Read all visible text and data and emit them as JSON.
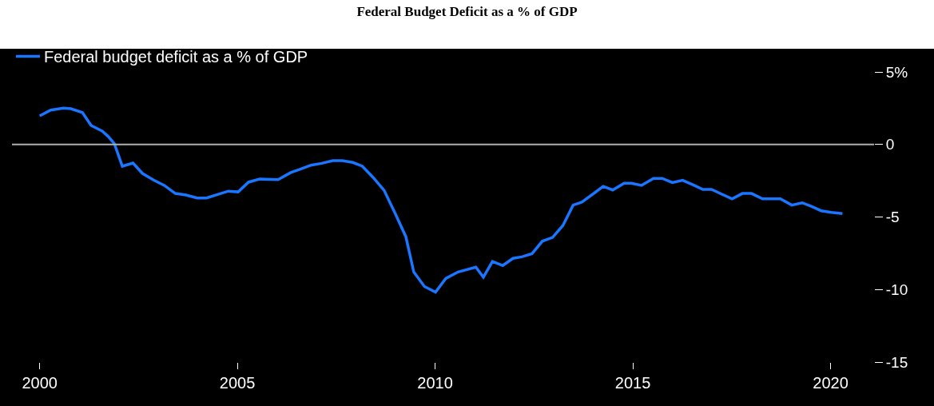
{
  "chart_data": {
    "type": "line",
    "title": "Federal Budget Deficit as a % of GDP",
    "x": [
      2000.0,
      2000.28,
      2000.6,
      2000.79,
      2001.08,
      2001.3,
      2001.58,
      2001.73,
      2001.89,
      2002.09,
      2002.36,
      2002.6,
      2002.88,
      2003.15,
      2003.43,
      2003.7,
      2003.98,
      2004.22,
      2004.53,
      2004.77,
      2005.02,
      2005.28,
      2005.56,
      2006.03,
      2006.35,
      2006.58,
      2006.86,
      2007.13,
      2007.41,
      2007.65,
      2007.92,
      2008.16,
      2008.43,
      2008.71,
      2008.98,
      2009.26,
      2009.46,
      2009.73,
      2010.01,
      2010.27,
      2010.58,
      2011.03,
      2011.22,
      2011.45,
      2011.71,
      2011.97,
      2012.19,
      2012.45,
      2012.71,
      2012.97,
      2013.23,
      2013.49,
      2013.71,
      2014.04,
      2014.25,
      2014.49,
      2014.78,
      2014.96,
      2015.22,
      2015.52,
      2015.74,
      2016.0,
      2016.26,
      2016.55,
      2016.77,
      2016.99,
      2017.25,
      2017.51,
      2017.77,
      2018.0,
      2018.28,
      2018.73,
      2019.02,
      2019.28,
      2019.5,
      2019.76,
      2020.02,
      2020.3
    ],
    "series": [
      {
        "name": "Federal budget deficit as a % of GDP",
        "color": "#1a75ff",
        "values": [
          1.97,
          2.37,
          2.5,
          2.46,
          2.2,
          1.31,
          0.93,
          0.56,
          0.05,
          -1.5,
          -1.28,
          -2.0,
          -2.45,
          -2.82,
          -3.38,
          -3.49,
          -3.69,
          -3.69,
          -3.42,
          -3.22,
          -3.27,
          -2.6,
          -2.39,
          -2.43,
          -1.94,
          -1.72,
          -1.43,
          -1.3,
          -1.12,
          -1.12,
          -1.24,
          -1.5,
          -2.27,
          -3.16,
          -4.7,
          -6.36,
          -8.79,
          -9.79,
          -10.18,
          -9.24,
          -8.79,
          -8.46,
          -9.15,
          -8.07,
          -8.35,
          -7.85,
          -7.75,
          -7.53,
          -6.67,
          -6.41,
          -5.59,
          -4.18,
          -3.97,
          -3.32,
          -2.89,
          -3.14,
          -2.67,
          -2.67,
          -2.82,
          -2.34,
          -2.34,
          -2.63,
          -2.47,
          -2.82,
          -3.1,
          -3.1,
          -3.43,
          -3.75,
          -3.38,
          -3.38,
          -3.75,
          -3.75,
          -4.18,
          -4.02,
          -4.25,
          -4.57,
          -4.68,
          -4.76
        ]
      }
    ],
    "xlim": [
      1999.3,
      2021.1
    ],
    "xticks": [
      2000,
      2005,
      2010,
      2015,
      2020
    ],
    "ylim": [
      -15,
      5
    ],
    "yticks": [
      {
        "value": 5,
        "label": "5%"
      },
      0,
      -5,
      -10,
      -15
    ],
    "ref_lines": [
      {
        "axis": "y",
        "value": 0,
        "label": null,
        "color": "#b0b0b0"
      }
    ],
    "legend": "top left",
    "grid": false,
    "marker": "none",
    "line_style": "solid"
  }
}
